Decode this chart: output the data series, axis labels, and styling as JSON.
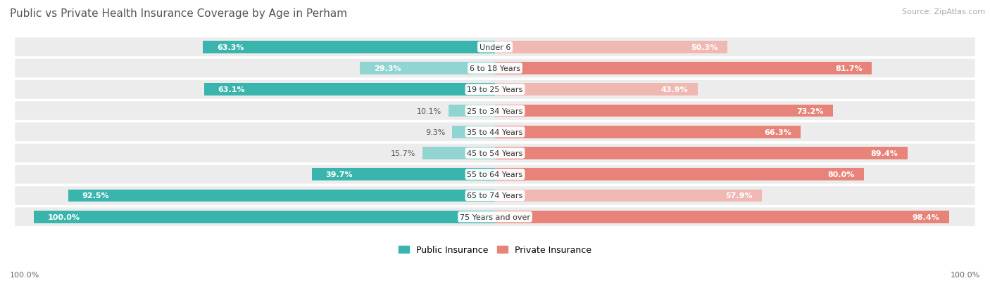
{
  "title": "Public vs Private Health Insurance Coverage by Age in Perham",
  "source": "Source: ZipAtlas.com",
  "categories": [
    "Under 6",
    "6 to 18 Years",
    "19 to 25 Years",
    "25 to 34 Years",
    "35 to 44 Years",
    "45 to 54 Years",
    "55 to 64 Years",
    "65 to 74 Years",
    "75 Years and over"
  ],
  "public_values": [
    63.3,
    29.3,
    63.1,
    10.1,
    9.3,
    15.7,
    39.7,
    92.5,
    100.0
  ],
  "private_values": [
    50.3,
    81.7,
    43.9,
    73.2,
    66.3,
    89.4,
    80.0,
    57.9,
    98.4
  ],
  "public_color_dark": "#3ab5ad",
  "public_color_light": "#90d5d1",
  "private_color_dark": "#e8837a",
  "private_color_light": "#f0b8b3",
  "row_bg_color": "#ececec",
  "row_bg_alt": "#f5f5f5",
  "bar_height": 0.58,
  "legend_public": "Public Insurance",
  "legend_private": "Private Insurance",
  "title_fontsize": 11,
  "source_fontsize": 8,
  "label_fontsize": 8,
  "value_fontsize": 8,
  "background_color": "#ffffff",
  "pub_dark_threshold": 35,
  "priv_dark_threshold": 60,
  "pub_label_inside_threshold": 18,
  "priv_label_inside_threshold": 18
}
